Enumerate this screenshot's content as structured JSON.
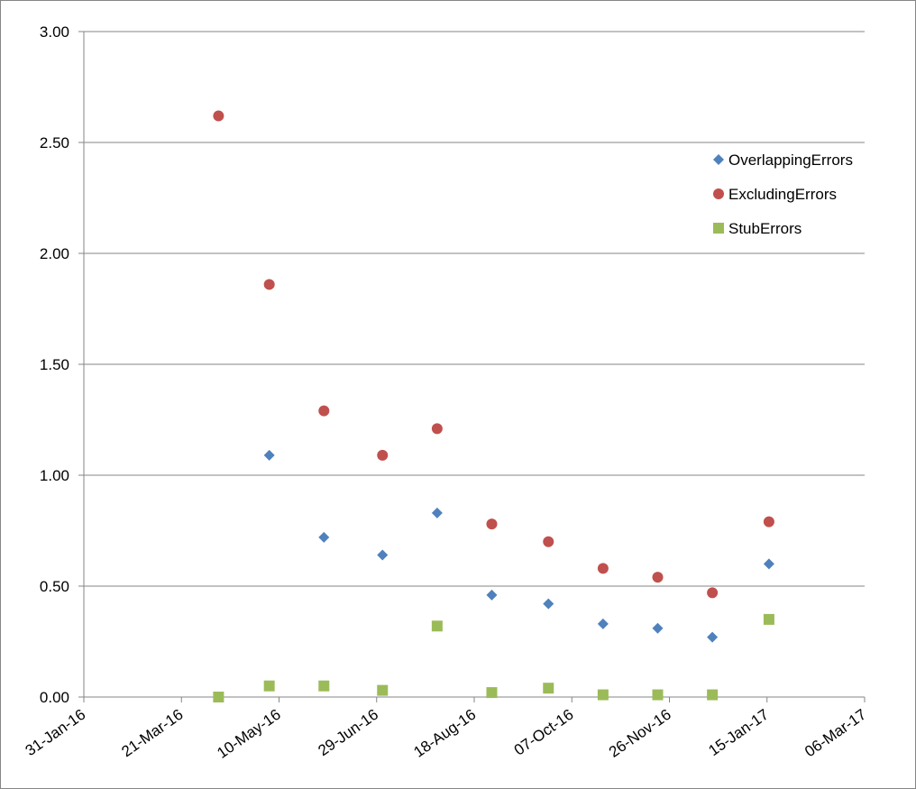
{
  "chart_data": {
    "type": "scatter",
    "title": "",
    "xlabel": "",
    "ylabel": "",
    "x_tick_labels": [
      "31-Jan-16",
      "21-Mar-16",
      "10-May-16",
      "29-Jun-16",
      "18-Aug-16",
      "07-Oct-16",
      "26-Nov-16",
      "15-Jan-17",
      "06-Mar-17"
    ],
    "y_tick_labels": [
      "0.00",
      "0.50",
      "1.00",
      "1.50",
      "2.00",
      "2.50",
      "3.00"
    ],
    "xlim": [
      "2016-01-31",
      "2017-03-06"
    ],
    "ylim": [
      0,
      3
    ],
    "grid": {
      "horizontal": true,
      "vertical": false
    },
    "legend_position": "right",
    "series": [
      {
        "name": "OverlappingErrors",
        "marker": "diamond",
        "color": "#4F81BD",
        "points": [
          {
            "x": "2016-05-05",
            "y": 1.09
          },
          {
            "x": "2016-06-02",
            "y": 0.72
          },
          {
            "x": "2016-07-02",
            "y": 0.64
          },
          {
            "x": "2016-07-30",
            "y": 0.83
          },
          {
            "x": "2016-08-27",
            "y": 0.46
          },
          {
            "x": "2016-09-25",
            "y": 0.42
          },
          {
            "x": "2016-10-23",
            "y": 0.33
          },
          {
            "x": "2016-11-20",
            "y": 0.31
          },
          {
            "x": "2016-12-18",
            "y": 0.27
          },
          {
            "x": "2017-01-16",
            "y": 0.6
          }
        ]
      },
      {
        "name": "ExcludingErrors",
        "marker": "circle",
        "color": "#C0504D",
        "points": [
          {
            "x": "2016-04-09",
            "y": 2.62
          },
          {
            "x": "2016-05-05",
            "y": 1.86
          },
          {
            "x": "2016-06-02",
            "y": 1.29
          },
          {
            "x": "2016-07-02",
            "y": 1.09
          },
          {
            "x": "2016-07-30",
            "y": 1.21
          },
          {
            "x": "2016-08-27",
            "y": 0.78
          },
          {
            "x": "2016-09-25",
            "y": 0.7
          },
          {
            "x": "2016-10-23",
            "y": 0.58
          },
          {
            "x": "2016-11-20",
            "y": 0.54
          },
          {
            "x": "2016-12-18",
            "y": 0.47
          },
          {
            "x": "2017-01-16",
            "y": 0.79
          }
        ]
      },
      {
        "name": "StubErrors",
        "marker": "square",
        "color": "#9BBB59",
        "points": [
          {
            "x": "2016-04-09",
            "y": 0.0
          },
          {
            "x": "2016-05-05",
            "y": 0.05
          },
          {
            "x": "2016-06-02",
            "y": 0.05
          },
          {
            "x": "2016-07-02",
            "y": 0.03
          },
          {
            "x": "2016-07-30",
            "y": 0.32
          },
          {
            "x": "2016-08-27",
            "y": 0.02
          },
          {
            "x": "2016-09-25",
            "y": 0.04
          },
          {
            "x": "2016-10-23",
            "y": 0.01
          },
          {
            "x": "2016-11-20",
            "y": 0.01
          },
          {
            "x": "2016-12-18",
            "y": 0.01
          },
          {
            "x": "2017-01-16",
            "y": 0.35
          }
        ]
      }
    ]
  }
}
